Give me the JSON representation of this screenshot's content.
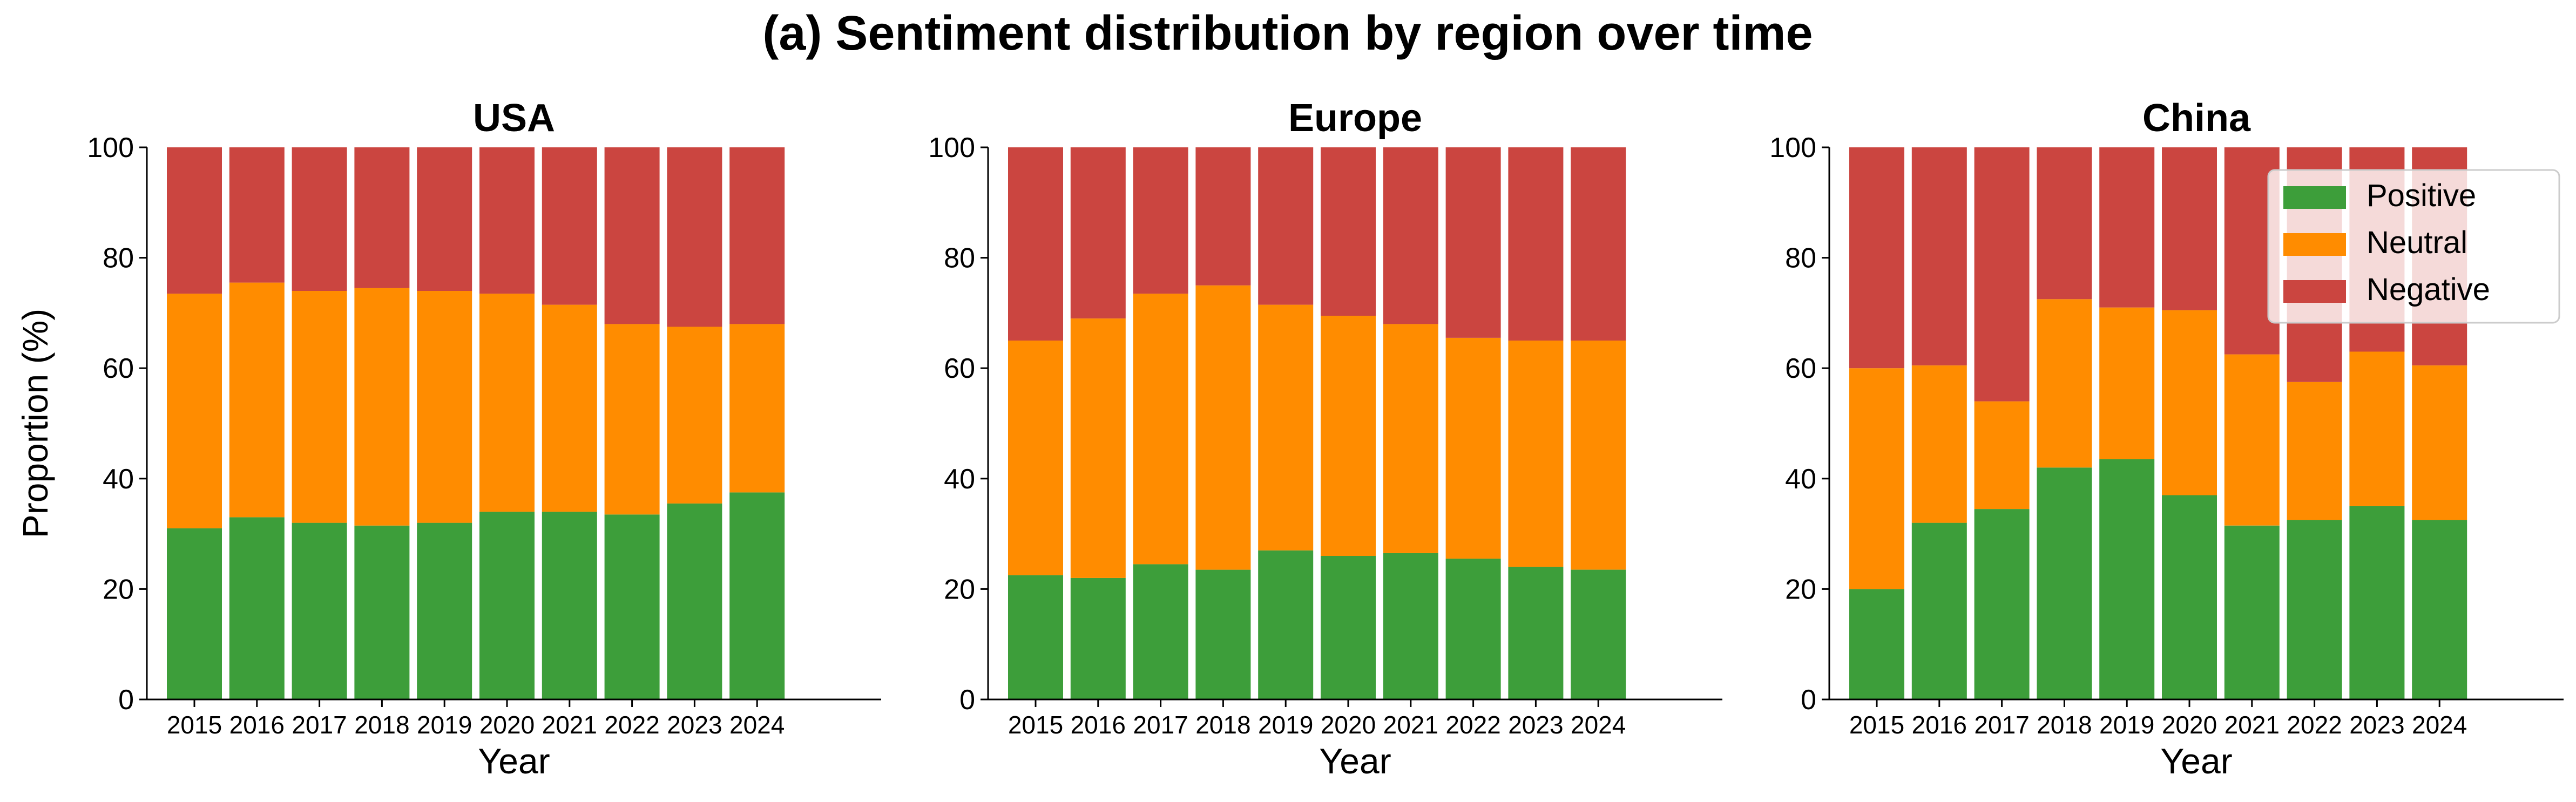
{
  "figure": {
    "title": "(a) Sentiment distribution by region over time"
  },
  "colors": {
    "Positive": "#3d9e3a",
    "Neutral": "#ff8c00",
    "Negative": "#cb4540"
  },
  "legend": {
    "placement": "top-right",
    "panel": "China",
    "entries": [
      "Positive",
      "Neutral",
      "Negative"
    ]
  },
  "chart_data": [
    {
      "type": "bar",
      "stacked": true,
      "title": "USA",
      "xlabel": "Year",
      "ylabel": "Proportion (%)",
      "ylim": [
        0,
        100
      ],
      "yticks": [
        0,
        20,
        40,
        60,
        80,
        100
      ],
      "grid": false,
      "categories": [
        "2015",
        "2016",
        "2017",
        "2018",
        "2019",
        "2020",
        "2021",
        "2022",
        "2023",
        "2024"
      ],
      "series": [
        {
          "name": "Positive",
          "values": [
            31,
            33,
            32,
            31.5,
            32,
            34,
            34,
            33.5,
            35.5,
            37.5
          ]
        },
        {
          "name": "Neutral",
          "values": [
            42.5,
            42.5,
            42,
            43,
            42,
            39.5,
            37.5,
            34.5,
            32,
            30.5
          ]
        },
        {
          "name": "Negative",
          "values": [
            26.5,
            24.5,
            26,
            25.5,
            26,
            26.5,
            28.5,
            32,
            32.5,
            32
          ]
        }
      ]
    },
    {
      "type": "bar",
      "stacked": true,
      "title": "Europe",
      "xlabel": "Year",
      "ylabel": "",
      "ylim": [
        0,
        100
      ],
      "yticks": [
        0,
        20,
        40,
        60,
        80,
        100
      ],
      "grid": false,
      "categories": [
        "2015",
        "2016",
        "2017",
        "2018",
        "2019",
        "2020",
        "2021",
        "2022",
        "2023",
        "2024"
      ],
      "series": [
        {
          "name": "Positive",
          "values": [
            22.5,
            22,
            24.5,
            23.5,
            27,
            26,
            26.5,
            25.5,
            24,
            23.5
          ]
        },
        {
          "name": "Neutral",
          "values": [
            42.5,
            47,
            49,
            51.5,
            44.5,
            43.5,
            41.5,
            40,
            41,
            41.5
          ]
        },
        {
          "name": "Negative",
          "values": [
            35,
            31,
            26.5,
            25,
            28.5,
            30.5,
            32,
            34.5,
            35,
            35
          ]
        }
      ]
    },
    {
      "type": "bar",
      "stacked": true,
      "title": "China",
      "xlabel": "Year",
      "ylabel": "",
      "ylim": [
        0,
        100
      ],
      "yticks": [
        0,
        20,
        40,
        60,
        80,
        100
      ],
      "grid": false,
      "categories": [
        "2015",
        "2016",
        "2017",
        "2018",
        "2019",
        "2020",
        "2021",
        "2022",
        "2023",
        "2024"
      ],
      "series": [
        {
          "name": "Positive",
          "values": [
            20,
            32,
            34.5,
            42,
            43.5,
            37,
            31.5,
            32.5,
            35,
            32.5
          ]
        },
        {
          "name": "Neutral",
          "values": [
            40,
            28.5,
            19.5,
            30.5,
            27.5,
            33.5,
            31,
            25,
            28,
            28
          ]
        },
        {
          "name": "Negative",
          "values": [
            40,
            39.5,
            46,
            27.5,
            29,
            29.5,
            37.5,
            42.5,
            37,
            39.5
          ]
        }
      ]
    }
  ]
}
